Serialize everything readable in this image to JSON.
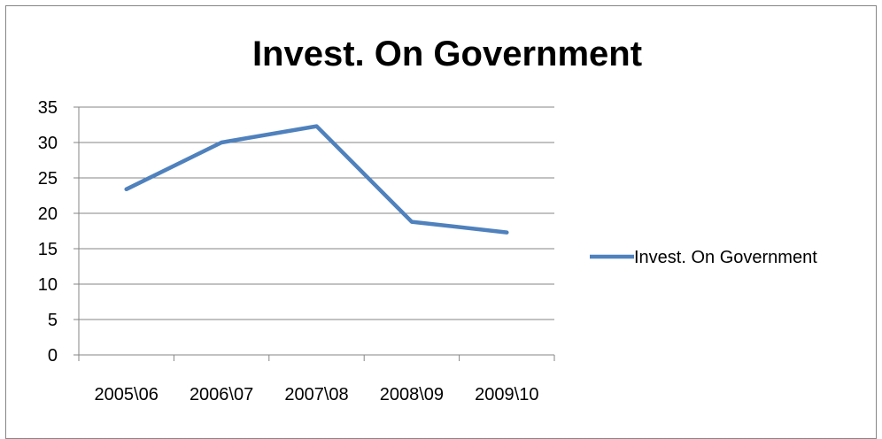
{
  "chart_data": {
    "type": "line",
    "title": "Invest. On Government",
    "xlabel": "",
    "ylabel": "",
    "categories": [
      "2005\\06",
      "2006\\07",
      "2007\\08",
      "2008\\09",
      "2009\\10"
    ],
    "series": [
      {
        "name": "Invest. On Government",
        "values": [
          23.4,
          30.0,
          32.3,
          18.8,
          17.3
        ],
        "color": "#4f81bd"
      }
    ],
    "ylim": [
      0,
      35
    ],
    "yticks": [
      0,
      5,
      10,
      15,
      20,
      25,
      30,
      35
    ],
    "grid": true,
    "legend": "right"
  }
}
